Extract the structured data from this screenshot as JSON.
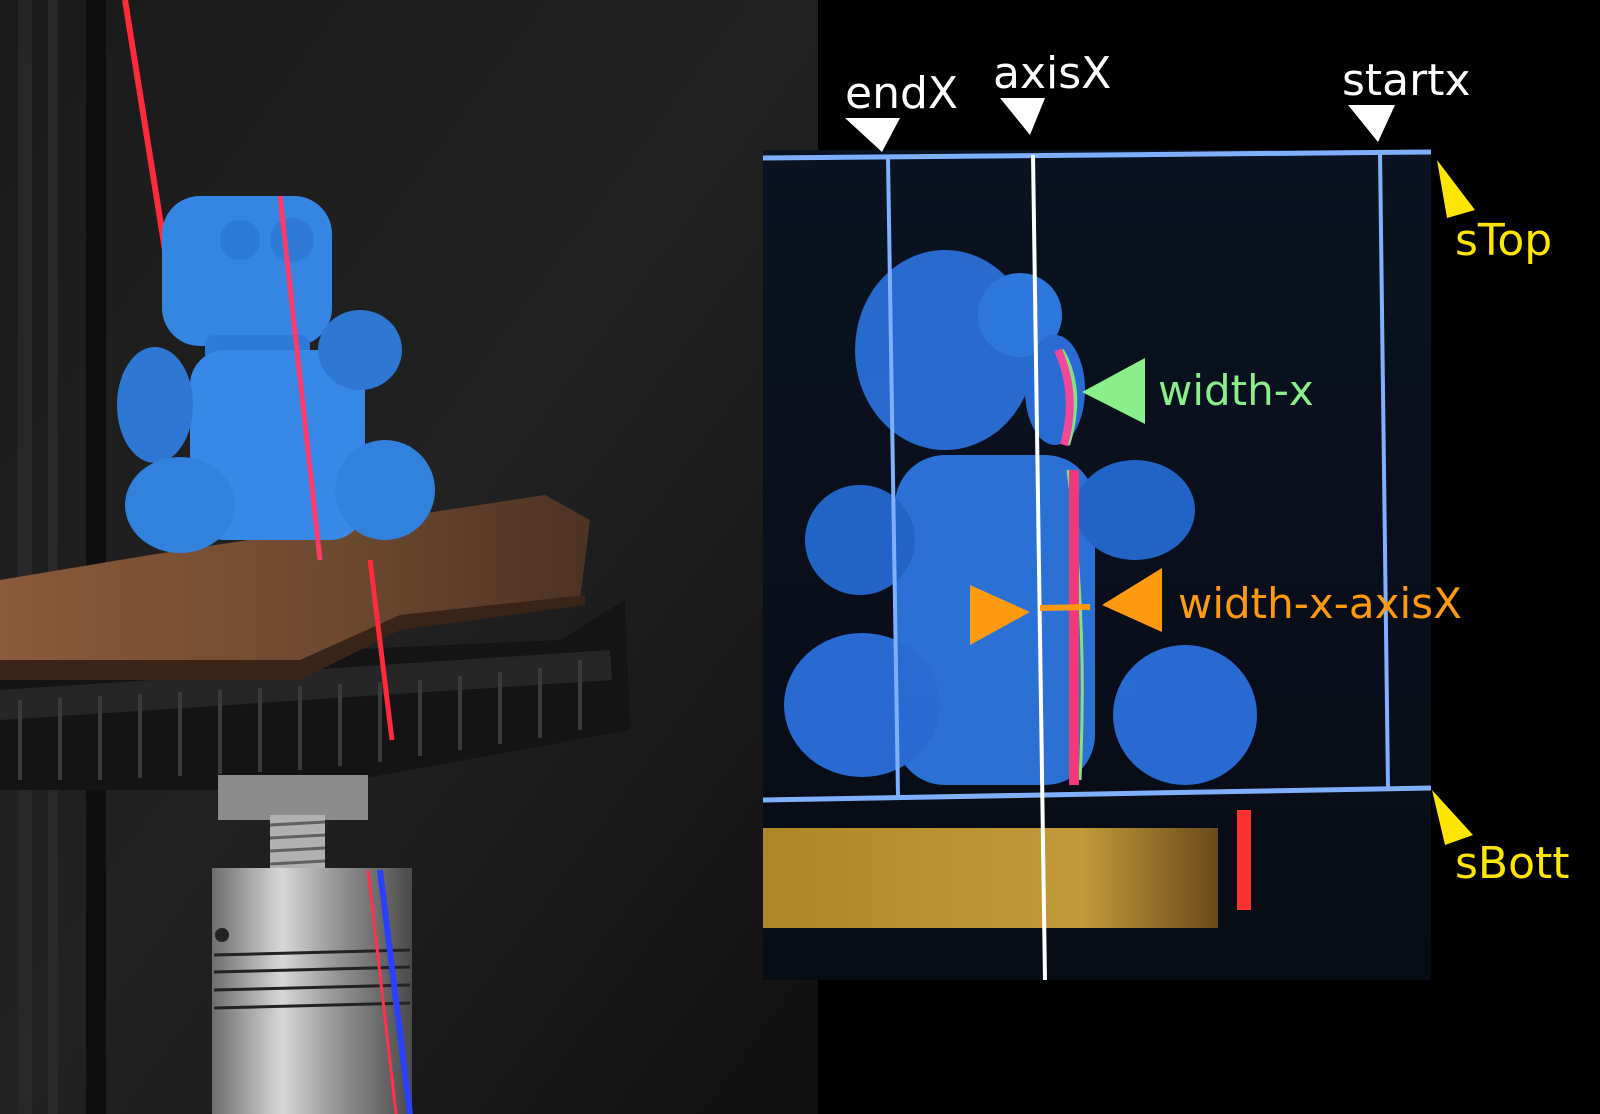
{
  "labels": {
    "endX": "endX",
    "axisX": "axisX",
    "startx": "startx",
    "sTop": "sTop",
    "sBott": "sBott",
    "width_x": "width-x",
    "width_x_axisX": "width-x-axisX"
  },
  "colors": {
    "background": "#000000",
    "guide_line": "#7fb0ff",
    "axis_line": "#ffffff",
    "laser": "#ff2a4a",
    "figure_blue": "#2f7fe0",
    "white_marker": "#ffffff",
    "yellow_marker": "#ffe600",
    "green_marker": "#8aee8a",
    "orange_marker": "#ff9a10"
  },
  "icons": {
    "column_marker": "white-down-triangle",
    "row_marker": "yellow-triangle",
    "width_marker": "green-left-triangle",
    "distance_marker": "orange-double-triangle"
  }
}
